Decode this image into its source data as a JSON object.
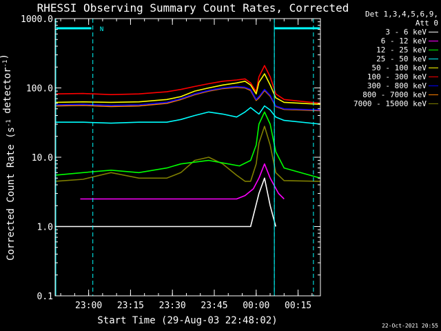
{
  "chart_data": {
    "type": "line",
    "title": "RHESSI Observing Summary Count Rates, Corrected",
    "xlabel": "Start Time (29-Aug-03 22:48:02)",
    "ylabel": "Corrected Count Rate (s⁻¹ detector⁻¹)",
    "yscale": "log",
    "ylim": [
      0.1,
      1000
    ],
    "xlim_minutes": [
      0,
      95
    ],
    "y_ticks": [
      "0.1",
      "1.0",
      "10.0",
      "100.0",
      "1000.0"
    ],
    "x_ticks": [
      {
        "label": "23:00",
        "minute": 12
      },
      {
        "label": "23:15",
        "minute": 27
      },
      {
        "label": "23:30",
        "minute": 42
      },
      {
        "label": "23:45",
        "minute": 57
      },
      {
        "label": "00:00",
        "minute": 72
      },
      {
        "label": "00:15",
        "minute": 87
      }
    ],
    "night_markers_minutes": [
      13.5,
      78.5,
      92.5
    ],
    "saa_bar": {
      "label": "N"
    },
    "legend_header": [
      "Det 1,3,4,5,6,9,",
      "Att 0"
    ],
    "series": [
      {
        "name": "3 - 6 keV",
        "color": "#ffffff",
        "x": [
          0,
          10,
          20,
          30,
          45,
          55,
          65,
          70,
          73,
          75,
          77,
          79
        ],
        "y": [
          1.0,
          1.0,
          1.0,
          1.0,
          1.0,
          1.0,
          1.0,
          1.0,
          3.0,
          5.0,
          2.0,
          1.0
        ]
      },
      {
        "name": "6 - 12 keV",
        "color": "#ff00ff",
        "x": [
          9,
          15,
          25,
          35,
          45,
          55,
          65,
          68,
          71,
          73,
          75,
          77,
          80,
          82
        ],
        "y": [
          2.5,
          2.5,
          2.5,
          2.5,
          2.5,
          2.5,
          2.5,
          2.8,
          3.5,
          5.0,
          8.0,
          5.0,
          3.0,
          2.5
        ]
      },
      {
        "name": "12 - 25 keV",
        "color": "#00ff00",
        "x": [
          0,
          10,
          20,
          30,
          40,
          45,
          55,
          62,
          66,
          70,
          72,
          73,
          75,
          77,
          79,
          82,
          95
        ],
        "y": [
          5.5,
          6.0,
          6.5,
          6.0,
          7.0,
          8.0,
          9.0,
          8.0,
          7.5,
          9.0,
          15.0,
          30.0,
          45.0,
          30.0,
          12.0,
          7.0,
          5.0
        ]
      },
      {
        "name": "25 - 50 keV",
        "color": "#00ffff",
        "x": [
          0,
          10,
          20,
          30,
          40,
          45,
          50,
          55,
          60,
          65,
          68,
          70,
          72,
          73,
          75,
          77,
          79,
          82,
          95
        ],
        "y": [
          32,
          32,
          31,
          32,
          32,
          35,
          40,
          45,
          42,
          38,
          45,
          52,
          45,
          42,
          55,
          48,
          38,
          34,
          30
        ]
      },
      {
        "name": "50 - 100 keV",
        "color": "#ffff00",
        "x": [
          0,
          10,
          20,
          30,
          40,
          45,
          50,
          55,
          60,
          65,
          68,
          70,
          72,
          73,
          75,
          77,
          79,
          82,
          95
        ],
        "y": [
          62,
          63,
          62,
          63,
          68,
          75,
          90,
          100,
          110,
          118,
          125,
          110,
          82,
          120,
          160,
          110,
          72,
          62,
          58
        ]
      },
      {
        "name": "100 - 300 keV",
        "color": "#ff0000",
        "x": [
          0,
          10,
          20,
          30,
          40,
          45,
          50,
          55,
          60,
          65,
          68,
          70,
          72,
          73,
          75,
          77,
          79,
          82,
          95
        ],
        "y": [
          82,
          83,
          80,
          82,
          88,
          95,
          105,
          115,
          125,
          130,
          135,
          118,
          88,
          145,
          210,
          145,
          82,
          68,
          60
        ]
      },
      {
        "name": "300 - 800 keV",
        "color": "#0000ff",
        "x": [
          0,
          10,
          20,
          30,
          40,
          45,
          50,
          55,
          60,
          65,
          68,
          70,
          72,
          73,
          75,
          77,
          79,
          82,
          95
        ],
        "y": [
          57,
          58,
          56,
          57,
          62,
          70,
          82,
          92,
          100,
          105,
          102,
          95,
          68,
          75,
          95,
          78,
          55,
          50,
          48
        ]
      },
      {
        "name": "800 - 7000 keV",
        "color": "#ff8000",
        "x": [
          0,
          10,
          20,
          30,
          40,
          45,
          50,
          55,
          60,
          65,
          68,
          70,
          72,
          73,
          75,
          77,
          79,
          82,
          95
        ],
        "y": [
          55,
          56,
          54,
          55,
          60,
          68,
          80,
          90,
          98,
          102,
          100,
          92,
          66,
          72,
          92,
          76,
          54,
          49,
          47
        ]
      },
      {
        "name": "7000 - 15000 keV",
        "color": "#808000",
        "x": [
          0,
          10,
          20,
          30,
          40,
          45,
          50,
          55,
          60,
          65,
          68,
          70,
          72,
          73,
          75,
          77,
          79,
          82,
          95
        ],
        "y": [
          4.5,
          4.8,
          6.0,
          5.0,
          5.0,
          6.0,
          9.0,
          10.0,
          8.0,
          5.5,
          4.5,
          4.5,
          8.0,
          16.0,
          28.0,
          15.0,
          6.0,
          4.6,
          4.5
        ]
      }
    ],
    "timestamp": "22-Oct-2021 20:55"
  }
}
